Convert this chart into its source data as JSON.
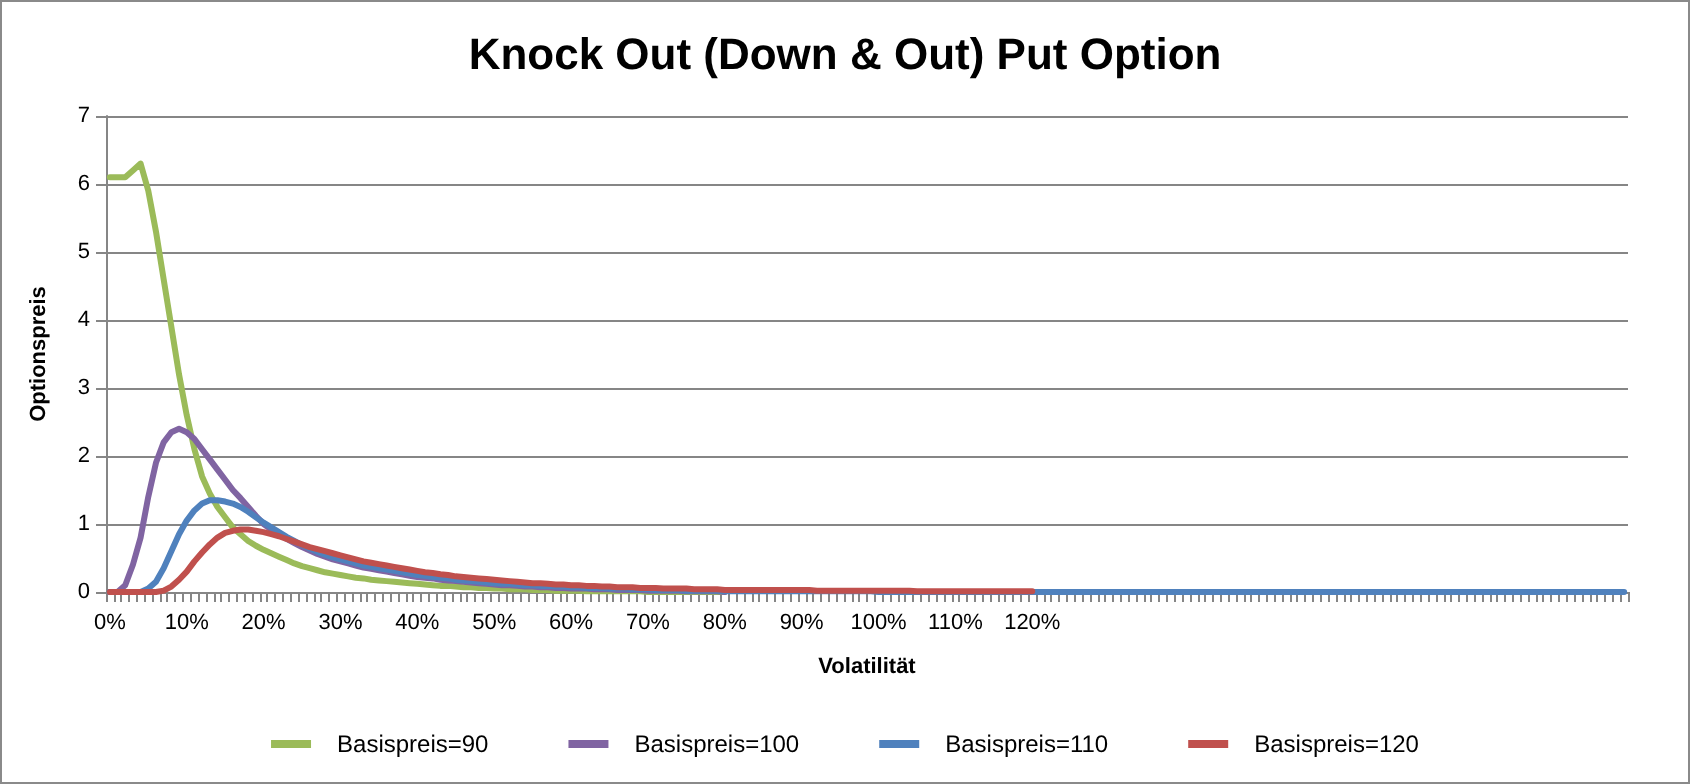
{
  "chart_data": {
    "type": "line",
    "title": "Knock Out (Down & Out) Put Option",
    "xlabel": "Volatilität",
    "ylabel": "Optionspreis",
    "categories": [
      "0%",
      null,
      null,
      null,
      null,
      null,
      null,
      null,
      null,
      null,
      "10%",
      null,
      null,
      null,
      null,
      null,
      null,
      null,
      null,
      null,
      "20%",
      null,
      null,
      null,
      null,
      null,
      null,
      null,
      null,
      null,
      "30%",
      null,
      null,
      null,
      null,
      null,
      null,
      null,
      null,
      null,
      "40%",
      null,
      null,
      null,
      null,
      null,
      null,
      null,
      null,
      null,
      "50%",
      null,
      null,
      null,
      null,
      null,
      null,
      null,
      null,
      null,
      "60%",
      null,
      null,
      null,
      null,
      null,
      null,
      null,
      null,
      null,
      "70%",
      null,
      null,
      null,
      null,
      null,
      null,
      null,
      null,
      null,
      "80%",
      null,
      null,
      null,
      null,
      null,
      null,
      null,
      null,
      null,
      "90%",
      null,
      null,
      null,
      null,
      null,
      null,
      null,
      null,
      null,
      "100%",
      null,
      null,
      null,
      null,
      null,
      null,
      null,
      null,
      null,
      "110%",
      null,
      null,
      null,
      null,
      null,
      null,
      null,
      null,
      null,
      "120%",
      null,
      null,
      null,
      null,
      null,
      null,
      null,
      null,
      null,
      null,
      null,
      null,
      null,
      null,
      null,
      null,
      null,
      null,
      null,
      null,
      null,
      null,
      null,
      null,
      null,
      null,
      null,
      null,
      null,
      null,
      null,
      null,
      null,
      null,
      null,
      null,
      null,
      null,
      null,
      null,
      null,
      null,
      null,
      null,
      null,
      null,
      null,
      null,
      null,
      null,
      null,
      null,
      null,
      null,
      null,
      null,
      null,
      null,
      null,
      null,
      null,
      null,
      null,
      null,
      null,
      null,
      null,
      null,
      null,
      null,
      null,
      null,
      null,
      null,
      null,
      null,
      null
    ],
    "series": [
      {
        "name": "Basispreis=90",
        "color": "#9bbb59",
        "values": [
          6.1,
          6.1,
          6.1,
          6.2,
          6.3,
          5.9,
          5.3,
          4.6,
          3.9,
          3.2,
          2.6,
          2.1,
          1.7,
          1.45,
          1.25,
          1.1,
          0.95,
          0.85,
          0.75,
          0.68,
          0.62,
          0.57,
          0.52,
          0.47,
          0.42,
          0.38,
          0.35,
          0.32,
          0.29,
          0.27,
          0.25,
          0.23,
          0.21,
          0.2,
          0.18,
          0.17,
          0.16,
          0.15,
          0.14,
          0.13,
          0.12,
          0.11,
          0.1,
          0.09,
          0.09,
          0.08,
          0.07,
          0.07,
          0.06,
          0.06,
          0.05,
          0.05,
          0.04,
          0.04,
          0.04,
          0.03,
          0.03,
          0.03,
          0.02,
          0.02,
          0.02,
          0.02,
          0.01,
          0.01,
          0.01,
          0.01,
          0.01,
          0.01,
          0.01,
          0.01,
          0,
          0,
          0,
          0,
          0,
          0,
          0,
          0,
          0,
          0,
          0,
          null,
          null,
          null,
          null,
          null,
          null,
          null,
          null,
          null,
          null,
          null,
          null,
          null,
          null,
          null,
          null,
          null,
          null,
          null,
          null,
          null,
          null,
          null,
          null,
          null,
          null,
          null,
          null,
          null,
          null,
          null,
          null,
          null,
          null,
          null,
          null,
          null,
          null,
          null,
          null,
          null,
          null,
          null,
          null,
          null,
          null,
          null,
          null,
          null,
          null,
          null,
          null,
          null,
          null,
          null,
          null,
          null,
          null,
          null,
          null,
          null,
          null,
          null,
          null,
          null,
          null,
          null,
          null,
          null,
          null,
          null,
          null,
          null,
          null,
          null,
          null,
          null,
          null,
          null,
          null,
          null,
          null,
          null,
          null,
          null,
          null,
          null,
          null,
          null,
          null,
          null,
          null,
          null,
          null,
          null,
          null,
          null,
          null,
          null,
          null,
          null,
          null,
          null,
          null,
          null,
          null,
          null,
          null,
          null,
          null,
          null,
          null,
          null,
          null,
          null,
          null,
          null
        ]
      },
      {
        "name": "Basispreis=100",
        "color": "#8064a2",
        "values": [
          0,
          0,
          0.1,
          0.4,
          0.8,
          1.4,
          1.9,
          2.2,
          2.35,
          2.4,
          2.35,
          2.25,
          2.1,
          1.95,
          1.8,
          1.65,
          1.5,
          1.38,
          1.25,
          1.12,
          1.0,
          0.92,
          0.85,
          0.78,
          0.72,
          0.66,
          0.61,
          0.56,
          0.52,
          0.48,
          0.45,
          0.42,
          0.39,
          0.36,
          0.34,
          0.32,
          0.3,
          0.28,
          0.26,
          0.24,
          0.22,
          0.21,
          0.2,
          0.18,
          0.17,
          0.16,
          0.15,
          0.14,
          0.13,
          0.12,
          0.11,
          0.1,
          0.1,
          0.09,
          0.08,
          0.08,
          0.07,
          0.07,
          0.06,
          0.06,
          0.05,
          0.05,
          0.05,
          0.04,
          0.04,
          0.04,
          0.03,
          0.03,
          0.03,
          0.03,
          0.02,
          0.02,
          0.02,
          0.02,
          0.02,
          0.01,
          0.01,
          0.01,
          0.01,
          0.01,
          0,
          null,
          null,
          null,
          null,
          null,
          null,
          null,
          null,
          null,
          null,
          null,
          null,
          null,
          null,
          null,
          null,
          null,
          null,
          null,
          null,
          null,
          null,
          null,
          null,
          null,
          null,
          null,
          null,
          null,
          null,
          null,
          null,
          null,
          null,
          null,
          null,
          null,
          null,
          null,
          null,
          null,
          null,
          null,
          null,
          null,
          null,
          null,
          null,
          null,
          null,
          null,
          null,
          null,
          null,
          null,
          null,
          null,
          null,
          null,
          null,
          null,
          null,
          null,
          null,
          null,
          null,
          null,
          null,
          null,
          null,
          null,
          null,
          null,
          null,
          null,
          null,
          null,
          null,
          null,
          null,
          null,
          null,
          null,
          null,
          null,
          null,
          null,
          null,
          null,
          null,
          null,
          null,
          null,
          null,
          null,
          null,
          null,
          null,
          null,
          null,
          null,
          null,
          null,
          null,
          null,
          null,
          null,
          null,
          null,
          null,
          null,
          null,
          null,
          null,
          null,
          null,
          null
        ]
      },
      {
        "name": "Basispreis=110",
        "color": "#4f81bd",
        "values": [
          0,
          0,
          0,
          0,
          0,
          0.05,
          0.15,
          0.35,
          0.6,
          0.85,
          1.05,
          1.2,
          1.3,
          1.35,
          1.35,
          1.33,
          1.3,
          1.25,
          1.18,
          1.1,
          1.02,
          0.95,
          0.88,
          0.81,
          0.75,
          0.69,
          0.64,
          0.59,
          0.55,
          0.51,
          0.48,
          0.45,
          0.42,
          0.39,
          0.37,
          0.35,
          0.33,
          0.31,
          0.29,
          0.27,
          0.25,
          0.24,
          0.22,
          0.21,
          0.2,
          0.18,
          0.17,
          0.16,
          0.15,
          0.14,
          0.13,
          0.12,
          0.12,
          0.11,
          0.1,
          0.1,
          0.09,
          0.09,
          0.08,
          0.08,
          0.07,
          0.07,
          0.06,
          0.06,
          0.06,
          0.05,
          0.05,
          0.05,
          0.04,
          0.04,
          0.04,
          0.03,
          0.03,
          0.03,
          0.03,
          0.02,
          0.02,
          0.02,
          0.02,
          0.02,
          0.01,
          0.01,
          0.01,
          0.01,
          0.01,
          0.01,
          0.01,
          0.01,
          0.01,
          0.01,
          0.01,
          0.01,
          0.01,
          0.01,
          0.01,
          0.01,
          0.01,
          0.01,
          0.01,
          0.01,
          0,
          0,
          0,
          0,
          0,
          0,
          0,
          0,
          0,
          0,
          0,
          0,
          0,
          0,
          0,
          0,
          0,
          0,
          0,
          0,
          0,
          0,
          0,
          0,
          0,
          0,
          0,
          0,
          0,
          0,
          0,
          0,
          0,
          0,
          0,
          0,
          0,
          0,
          0,
          0,
          0,
          0,
          0,
          0,
          0,
          0,
          0,
          0,
          0,
          0,
          0,
          0,
          0,
          0,
          0,
          0,
          0,
          0,
          0,
          0,
          0,
          0,
          0,
          0,
          0,
          0,
          0,
          0,
          0,
          0,
          0,
          0,
          0,
          0,
          0,
          0,
          0,
          0,
          0,
          0,
          0,
          0,
          0,
          0,
          0,
          0,
          0,
          0,
          0,
          0,
          0,
          0,
          0,
          0,
          0,
          0,
          0,
          0
        ]
      },
      {
        "name": "Basispreis=120",
        "color": "#c0504d",
        "values": [
          0,
          0,
          0,
          0,
          0,
          0,
          0,
          0.02,
          0.08,
          0.18,
          0.3,
          0.45,
          0.58,
          0.7,
          0.8,
          0.87,
          0.9,
          0.92,
          0.92,
          0.9,
          0.88,
          0.85,
          0.82,
          0.78,
          0.74,
          0.7,
          0.66,
          0.63,
          0.6,
          0.57,
          0.54,
          0.51,
          0.48,
          0.45,
          0.43,
          0.41,
          0.39,
          0.37,
          0.35,
          0.33,
          0.31,
          0.29,
          0.28,
          0.26,
          0.25,
          0.23,
          0.22,
          0.21,
          0.2,
          0.19,
          0.18,
          0.17,
          0.16,
          0.15,
          0.14,
          0.13,
          0.13,
          0.12,
          0.11,
          0.11,
          0.1,
          0.1,
          0.09,
          0.09,
          0.08,
          0.08,
          0.07,
          0.07,
          0.07,
          0.06,
          0.06,
          0.06,
          0.05,
          0.05,
          0.05,
          0.05,
          0.04,
          0.04,
          0.04,
          0.04,
          0.03,
          0.03,
          0.03,
          0.03,
          0.03,
          0.03,
          0.03,
          0.03,
          0.03,
          0.03,
          0.03,
          0.03,
          0.02,
          0.02,
          0.02,
          0.02,
          0.02,
          0.02,
          0.02,
          0.02,
          0.02,
          0.02,
          0.02,
          0.02,
          0.02,
          0.01,
          0.01,
          0.01,
          0.01,
          0.01,
          0.01,
          0.01,
          0.01,
          0.01,
          0.01,
          0.01,
          0.01,
          0.01,
          0.01,
          0.01,
          0.01,
          null,
          null,
          null,
          null,
          null,
          null,
          null,
          null,
          null,
          null,
          null,
          null,
          null,
          null,
          null,
          null,
          null,
          null,
          null,
          null,
          null,
          null,
          null,
          null,
          null,
          null,
          null,
          null,
          null,
          null,
          null,
          null,
          null,
          null,
          null,
          null,
          null,
          null,
          null,
          null,
          null,
          null,
          null,
          null,
          null,
          null,
          null,
          null,
          null,
          null,
          null,
          null,
          null,
          null,
          null,
          null,
          null,
          null,
          null,
          null,
          null,
          null,
          null,
          null,
          null,
          null,
          null,
          null,
          null,
          null,
          null,
          null,
          null,
          null,
          null,
          null,
          null
        ]
      }
    ],
    "ylim": [
      0,
      7
    ],
    "yticks": [
      0,
      1,
      2,
      3,
      4,
      5,
      6,
      7
    ],
    "grid": "y",
    "legend": "bottom",
    "marker": "none",
    "line_style": "solid"
  }
}
